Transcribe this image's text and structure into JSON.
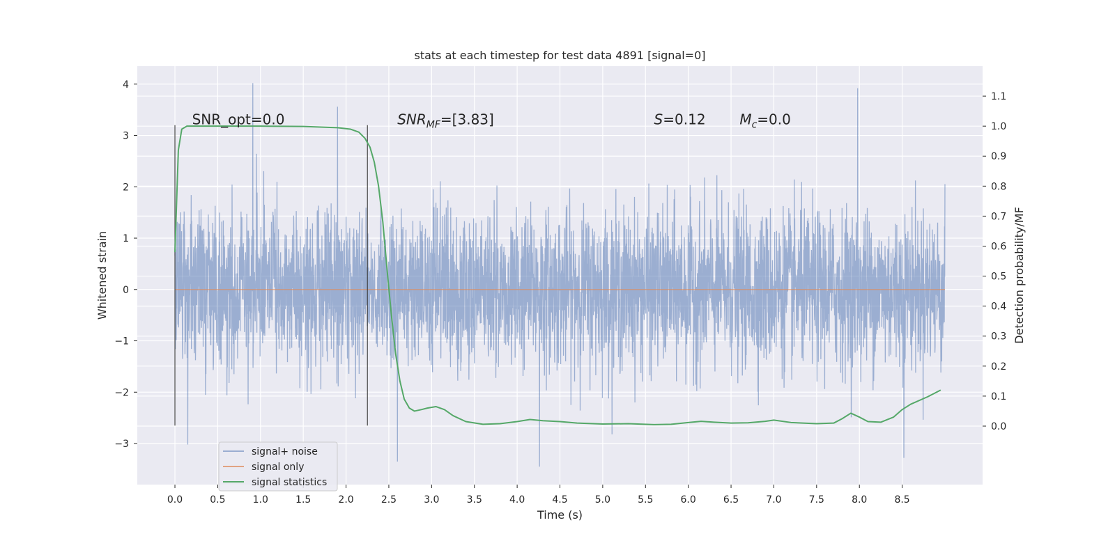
{
  "chart_data": {
    "type": "line",
    "title": "stats at each timestep for test data 4891 [signal=0]",
    "xlabel": "Time (s)",
    "ylabel_left": "Whitened strain",
    "ylabel_right": "Detection probability/MF",
    "xlim": [
      -0.44,
      9.44
    ],
    "ylim_left": [
      -3.8,
      4.35
    ],
    "ylim_right": [
      -0.195,
      1.2
    ],
    "x_ticks": [
      "0.0",
      "0.5",
      "1.0",
      "1.5",
      "2.0",
      "2.5",
      "3.0",
      "3.5",
      "4.0",
      "4.5",
      "5.0",
      "5.5",
      "6.0",
      "6.5",
      "7.0",
      "7.5",
      "8.0",
      "8.5"
    ],
    "x_tick_values": [
      0,
      0.5,
      1,
      1.5,
      2,
      2.5,
      3,
      3.5,
      4,
      4.5,
      5,
      5.5,
      6,
      6.5,
      7,
      7.5,
      8,
      8.5
    ],
    "y_left_ticks": [
      "−3",
      "−2",
      "−1",
      "0",
      "1",
      "2",
      "3",
      "4"
    ],
    "y_left_tick_values": [
      -3,
      -2,
      -1,
      0,
      1,
      2,
      3,
      4
    ],
    "y_right_ticks": [
      "0.0",
      "0.1",
      "0.2",
      "0.3",
      "0.4",
      "0.5",
      "0.6",
      "0.7",
      "0.8",
      "0.9",
      "1.0",
      "1.1"
    ],
    "y_right_tick_values": [
      0,
      0.1,
      0.2,
      0.3,
      0.4,
      0.5,
      0.6,
      0.7,
      0.8,
      0.9,
      1.0,
      1.1
    ],
    "grid": true,
    "legend_placement": "lower-left",
    "vertical_markers": [
      {
        "x": 0.0,
        "y_range": [
          -2.65,
          3.2
        ]
      },
      {
        "x": 2.25,
        "y_range": [
          -2.65,
          3.2
        ]
      }
    ],
    "annotations": [
      {
        "text": "SNR_opt=0.0",
        "x": 0.2,
        "y": 3.22,
        "style": "plain"
      },
      {
        "text": "SNRMF=[3.83]",
        "main": "SNR",
        "sub": "MF",
        "suffix": "=[3.83]",
        "x": 2.6,
        "y": 3.22,
        "style": "math"
      },
      {
        "text": "S=0.12",
        "main": "S",
        "sub": "",
        "suffix": "=0.12",
        "x": 5.6,
        "y": 3.22,
        "style": "math"
      },
      {
        "text": "Mc=0.0",
        "main": "M",
        "sub": "c",
        "suffix": "=0.0",
        "x": 6.6,
        "y": 3.22,
        "style": "math"
      }
    ],
    "series": [
      {
        "name": "signal+ noise",
        "axis": "left",
        "color": "#4c72b0",
        "render": "noise",
        "x_range": [
          0.0,
          9.0
        ],
        "std": 0.75,
        "extremes": [
          [
            0.91,
            4.02
          ],
          [
            7.98,
            3.92
          ],
          [
            1.9,
            3.56
          ],
          [
            8.52,
            -3.28
          ],
          [
            4.26,
            -3.45
          ],
          [
            2.6,
            -3.35
          ],
          [
            0.15,
            -3.02
          ]
        ]
      },
      {
        "name": "signal only",
        "axis": "left",
        "color": "#dd8452",
        "x": [
          0.0,
          9.0
        ],
        "values": [
          0.0,
          0.0
        ]
      },
      {
        "name": "signal statistics",
        "axis": "right",
        "color": "#55a868",
        "x": [
          0.0,
          0.04,
          0.08,
          0.14,
          0.2,
          0.3,
          0.5,
          1.0,
          1.5,
          1.9,
          2.05,
          2.15,
          2.22,
          2.28,
          2.33,
          2.38,
          2.43,
          2.48,
          2.53,
          2.58,
          2.63,
          2.68,
          2.74,
          2.8,
          2.88,
          2.95,
          3.05,
          3.15,
          3.25,
          3.4,
          3.6,
          3.8,
          4.0,
          4.15,
          4.3,
          4.5,
          4.7,
          5.0,
          5.3,
          5.6,
          5.8,
          6.0,
          6.15,
          6.3,
          6.5,
          6.7,
          6.9,
          7.0,
          7.2,
          7.5,
          7.7,
          7.8,
          7.9,
          8.0,
          8.1,
          8.25,
          8.4,
          8.5,
          8.6,
          8.8,
          8.95
        ],
        "values": [
          0.58,
          0.92,
          0.99,
          1.0,
          1.0,
          1.0,
          1.0,
          1.0,
          0.999,
          0.995,
          0.99,
          0.98,
          0.96,
          0.93,
          0.88,
          0.8,
          0.68,
          0.52,
          0.37,
          0.24,
          0.15,
          0.09,
          0.06,
          0.05,
          0.055,
          0.06,
          0.065,
          0.055,
          0.035,
          0.015,
          0.006,
          0.008,
          0.015,
          0.022,
          0.018,
          0.015,
          0.01,
          0.007,
          0.008,
          0.005,
          0.006,
          0.012,
          0.016,
          0.013,
          0.01,
          0.011,
          0.016,
          0.02,
          0.012,
          0.008,
          0.01,
          0.025,
          0.043,
          0.03,
          0.015,
          0.013,
          0.03,
          0.055,
          0.073,
          0.098,
          0.12
        ]
      }
    ]
  }
}
